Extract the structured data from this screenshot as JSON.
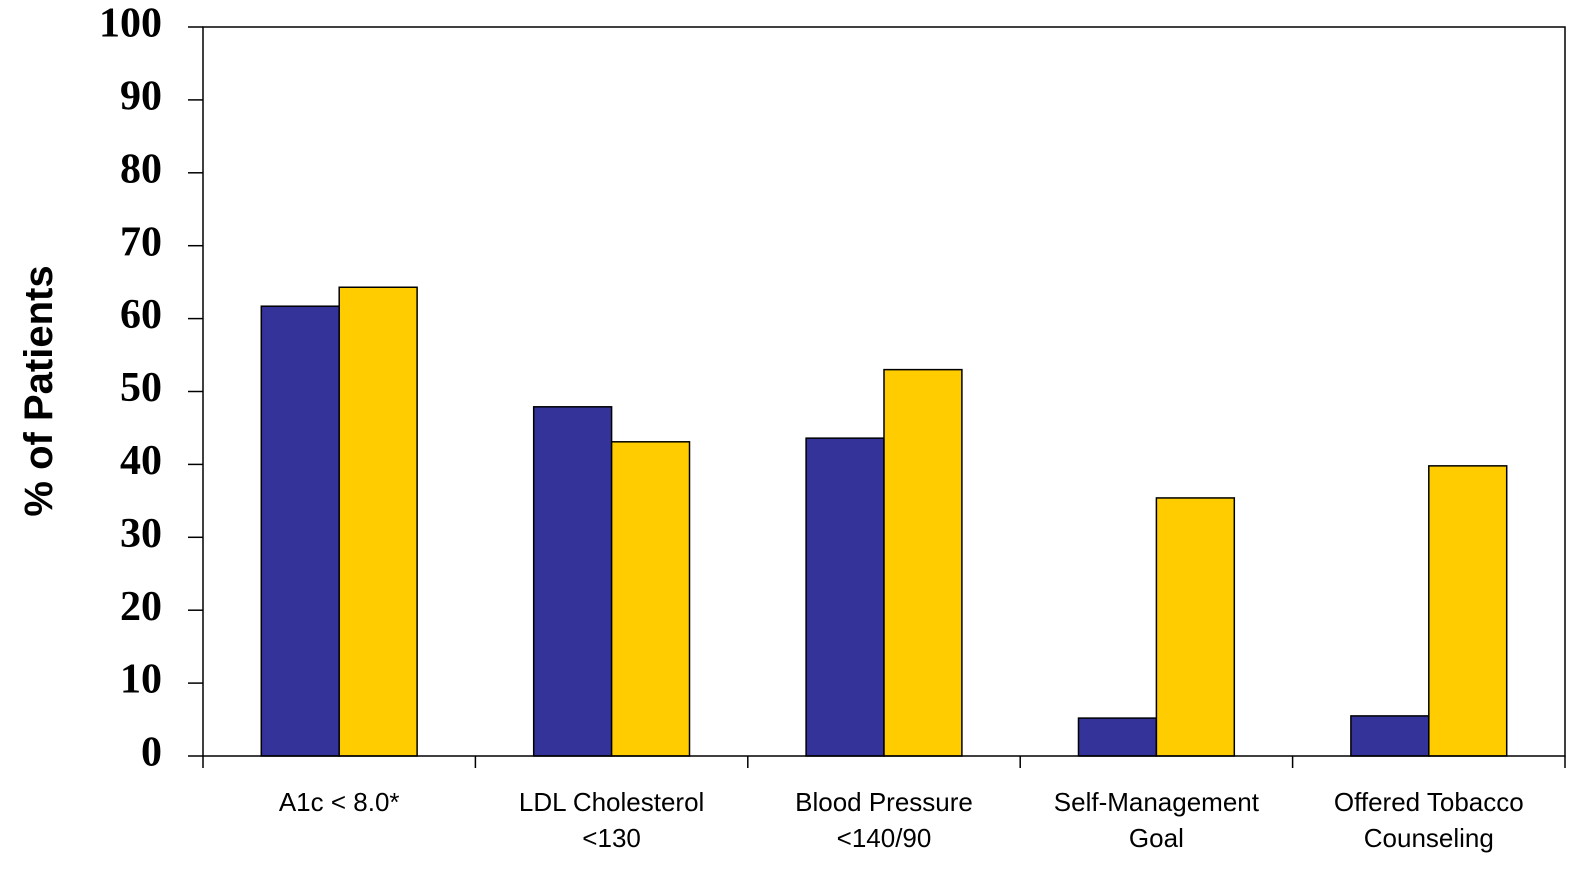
{
  "chart_data": {
    "type": "bar",
    "y_label": "% of Patients",
    "categories": [
      "A1c < 8.0*",
      "LDL Cholesterol\n<130",
      "Blood Pressure\n<140/90",
      "Self-Management\nGoal",
      "Offered Tobacco\nCounseling"
    ],
    "series": [
      {
        "color": "#333399",
        "values": [
          61.7,
          47.9,
          43.6,
          5.2,
          5.5
        ]
      },
      {
        "color": "#ffcc00",
        "values": [
          64.3,
          43.1,
          53.0,
          35.4,
          39.8
        ]
      }
    ],
    "ylim": [
      0,
      100
    ],
    "yticks": [
      0,
      10,
      20,
      30,
      40,
      50,
      60,
      70,
      80,
      90,
      100
    ],
    "grid": false
  }
}
